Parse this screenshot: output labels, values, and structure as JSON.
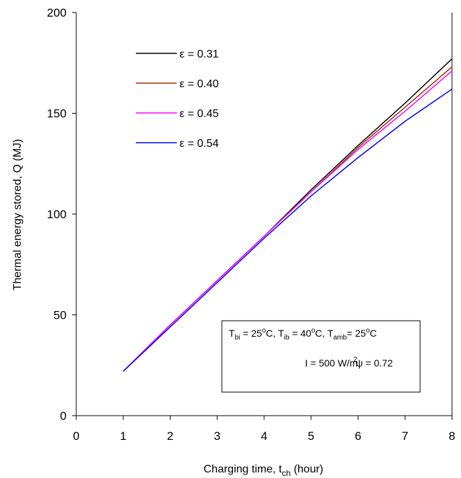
{
  "chart_data": {
    "type": "line",
    "xlabel": "Charging time, t",
    "xlabel_sub": "ch",
    "xlabel_suffix": " (hour)",
    "ylabel": "Thermal energy stored, Q (MJ)",
    "xlim": [
      0,
      8
    ],
    "ylim": [
      0,
      200
    ],
    "x_ticks": [
      "0",
      "1",
      "2",
      "3",
      "4",
      "5",
      "6",
      "7",
      "8"
    ],
    "y_ticks": [
      "0",
      "50",
      "100",
      "150",
      "200"
    ],
    "grid": false,
    "legend_position": "top-left",
    "x": [
      1,
      2,
      3,
      4,
      5,
      6,
      7,
      8
    ],
    "series": [
      {
        "name": "ε = 0.31",
        "color": "#000000",
        "values": [
          22,
          45,
          67,
          89,
          112,
          134,
          155,
          177
        ]
      },
      {
        "name": "ε = 0.40",
        "color": "#993300",
        "values": [
          22,
          45,
          67,
          89,
          111,
          133,
          153,
          173
        ]
      },
      {
        "name": "ε = 0.45",
        "color": "#ff00ff",
        "values": [
          22,
          45,
          67,
          89,
          111,
          132,
          151,
          171
        ]
      },
      {
        "name": "ε = 0.54",
        "color": "#0000ff",
        "values": [
          22,
          44,
          66,
          88,
          109,
          128,
          146,
          162
        ]
      }
    ],
    "annotation": {
      "line1": {
        "t1": "T",
        "t1_sub": "bi",
        "t1_val": " = 25",
        "t1_sup": "o",
        "t1_unit": "C, ",
        "t2": "T",
        "t2_sub": "ib",
        "t2_val": " = 40",
        "t2_sup": "o",
        "t2_unit": "C, ",
        "t3": "T",
        "t3_sub": "amb",
        "t3_val": "= 25",
        "t3_sup": "o",
        "t3_unit": "C"
      },
      "line2": {
        "text": "I = 500 W/m",
        "sup": "2",
        "text2": "ψ = 0.72"
      }
    }
  }
}
